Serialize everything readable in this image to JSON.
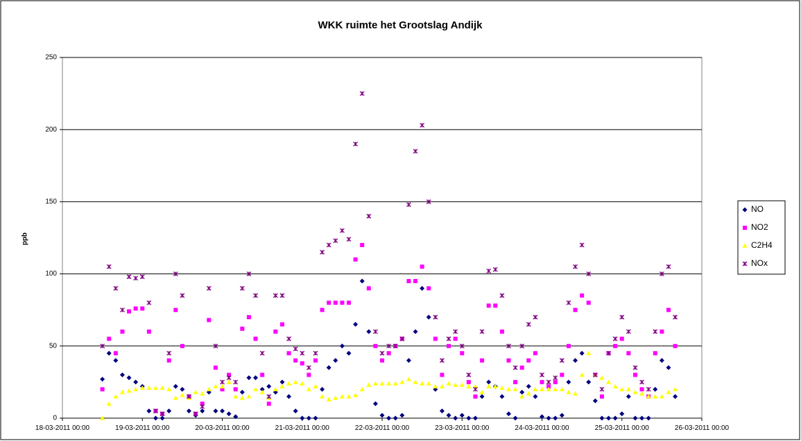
{
  "chart_data": {
    "type": "scatter",
    "title": "WKK ruimte het Grootslag Andijk",
    "y_label": "ppb",
    "x": [
      "2011-03-18T12:00",
      "2011-03-18T14:00",
      "2011-03-18T16:00",
      "2011-03-18T18:00",
      "2011-03-18T20:00",
      "2011-03-18T22:00",
      "2011-03-19T00:00",
      "2011-03-19T02:00",
      "2011-03-19T04:00",
      "2011-03-19T06:00",
      "2011-03-19T08:00",
      "2011-03-19T10:00",
      "2011-03-19T12:00",
      "2011-03-19T14:00",
      "2011-03-19T16:00",
      "2011-03-19T18:00",
      "2011-03-19T20:00",
      "2011-03-19T22:00",
      "2011-03-20T00:00",
      "2011-03-20T02:00",
      "2011-03-20T04:00",
      "2011-03-20T06:00",
      "2011-03-20T08:00",
      "2011-03-20T10:00",
      "2011-03-20T12:00",
      "2011-03-20T14:00",
      "2011-03-20T16:00",
      "2011-03-20T18:00",
      "2011-03-20T20:00",
      "2011-03-20T22:00",
      "2011-03-21T00:00",
      "2011-03-21T02:00",
      "2011-03-21T04:00",
      "2011-03-21T06:00",
      "2011-03-21T08:00",
      "2011-03-21T10:00",
      "2011-03-21T12:00",
      "2011-03-21T14:00",
      "2011-03-21T16:00",
      "2011-03-21T18:00",
      "2011-03-21T20:00",
      "2011-03-21T22:00",
      "2011-03-22T00:00",
      "2011-03-22T02:00",
      "2011-03-22T04:00",
      "2011-03-22T06:00",
      "2011-03-22T08:00",
      "2011-03-22T10:00",
      "2011-03-22T12:00",
      "2011-03-22T14:00",
      "2011-03-22T16:00",
      "2011-03-22T18:00",
      "2011-03-22T20:00",
      "2011-03-22T22:00",
      "2011-03-23T00:00",
      "2011-03-23T02:00",
      "2011-03-23T04:00",
      "2011-03-23T06:00",
      "2011-03-23T08:00",
      "2011-03-23T10:00",
      "2011-03-23T12:00",
      "2011-03-23T14:00",
      "2011-03-23T16:00",
      "2011-03-23T18:00",
      "2011-03-23T20:00",
      "2011-03-23T22:00",
      "2011-03-24T00:00",
      "2011-03-24T02:00",
      "2011-03-24T04:00",
      "2011-03-24T06:00",
      "2011-03-24T08:00",
      "2011-03-24T10:00",
      "2011-03-24T12:00",
      "2011-03-24T14:00",
      "2011-03-24T16:00",
      "2011-03-24T18:00",
      "2011-03-24T20:00",
      "2011-03-24T22:00",
      "2011-03-25T00:00",
      "2011-03-25T02:00",
      "2011-03-25T04:00",
      "2011-03-25T06:00",
      "2011-03-25T08:00",
      "2011-03-25T10:00",
      "2011-03-25T12:00",
      "2011-03-25T14:00",
      "2011-03-25T16:00"
    ],
    "series": [
      {
        "name": "NO",
        "color": "#000080",
        "marker": "diamond",
        "values": [
          27,
          45,
          40,
          30,
          28,
          25,
          22,
          5,
          0,
          0,
          5,
          22,
          20,
          5,
          2,
          5,
          18,
          5,
          5,
          3,
          1,
          18,
          28,
          28,
          20,
          22,
          18,
          25,
          15,
          5,
          0,
          0,
          0,
          20,
          35,
          40,
          50,
          45,
          65,
          95,
          60,
          10,
          2,
          0,
          0,
          2,
          40,
          60,
          90,
          70,
          20,
          5,
          2,
          0,
          2,
          0,
          0,
          15,
          25,
          22,
          15,
          3,
          0,
          18,
          22,
          15,
          1,
          0,
          0,
          2,
          25,
          40,
          45,
          25,
          12,
          0,
          0,
          0,
          3,
          15,
          0,
          0,
          0,
          20,
          40,
          35,
          15
        ]
      },
      {
        "name": "NO2",
        "color": "#ff00ff",
        "marker": "square",
        "values": [
          20,
          55,
          45,
          60,
          74,
          76,
          76,
          60,
          5,
          3,
          40,
          75,
          50,
          15,
          3,
          10,
          68,
          35,
          20,
          30,
          20,
          62,
          70,
          55,
          30,
          10,
          60,
          65,
          45,
          40,
          38,
          30,
          40,
          75,
          80,
          80,
          80,
          80,
          110,
          120,
          90,
          50,
          40,
          45,
          50,
          55,
          95,
          95,
          105,
          90,
          55,
          30,
          50,
          55,
          45,
          25,
          15,
          40,
          78,
          78,
          60,
          40,
          25,
          35,
          40,
          45,
          25,
          22,
          25,
          30,
          50,
          75,
          85,
          80,
          30,
          15,
          45,
          50,
          55,
          45,
          30,
          20,
          15,
          45,
          60,
          75,
          50
        ]
      },
      {
        "name": "C2H4",
        "color": "#ffff00",
        "marker": "triangle",
        "values": [
          0,
          10,
          15,
          18,
          19,
          20,
          21,
          21,
          21,
          21,
          20,
          14,
          16,
          14,
          18,
          17,
          20,
          22,
          22,
          25,
          15,
          14,
          15,
          20,
          18,
          14,
          20,
          22,
          24,
          25,
          24,
          20,
          22,
          15,
          13,
          14,
          15,
          15,
          16,
          20,
          23,
          24,
          24,
          24,
          24,
          25,
          27,
          25,
          24,
          24,
          22,
          22,
          24,
          23,
          23,
          22,
          22,
          18,
          22,
          22,
          21,
          20,
          20,
          15,
          17,
          20,
          20,
          20,
          20,
          20,
          18,
          17,
          30,
          45,
          30,
          28,
          25,
          22,
          20,
          20,
          18,
          17,
          15,
          15,
          15,
          18,
          20
        ]
      },
      {
        "name": "NOx",
        "color": "#800080",
        "marker": "x",
        "values": [
          50,
          105,
          90,
          75,
          98,
          97,
          98,
          80,
          5,
          3,
          45,
          100,
          85,
          15,
          3,
          8,
          90,
          50,
          25,
          28,
          25,
          90,
          100,
          85,
          45,
          15,
          85,
          85,
          55,
          48,
          45,
          35,
          45,
          115,
          120,
          123,
          130,
          124,
          190,
          225,
          140,
          60,
          45,
          50,
          50,
          55,
          148,
          185,
          203,
          150,
          70,
          40,
          55,
          60,
          50,
          30,
          20,
          60,
          102,
          103,
          85,
          50,
          35,
          50,
          65,
          70,
          30,
          25,
          28,
          40,
          80,
          105,
          120,
          100,
          30,
          20,
          45,
          55,
          70,
          60,
          35,
          25,
          20,
          60,
          100,
          105,
          70
        ]
      }
    ],
    "xlim": [
      "2011-03-18T00:00",
      "2011-03-26T00:00"
    ],
    "xticks": [
      {
        "value": "2011-03-18T00:00",
        "label": "18-03-2011 00:00"
      },
      {
        "value": "2011-03-19T00:00",
        "label": "19-03-2011 00:00"
      },
      {
        "value": "2011-03-20T00:00",
        "label": "20-03-2011 00:00"
      },
      {
        "value": "2011-03-21T00:00",
        "label": "21-03-2011 00:00"
      },
      {
        "value": "2011-03-22T00:00",
        "label": "22-03-2011 00:00"
      },
      {
        "value": "2011-03-23T00:00",
        "label": "23-03-2011 00:00"
      },
      {
        "value": "2011-03-24T00:00",
        "label": "24-03-2011 00:00"
      },
      {
        "value": "2011-03-25T00:00",
        "label": "25-03-2011 00:00"
      },
      {
        "value": "2011-03-26T00:00",
        "label": "26-03-2011 00:00"
      }
    ],
    "ylim": [
      0,
      250
    ],
    "yticks": [
      0,
      50,
      100,
      150,
      200,
      250
    ],
    "grid": true,
    "legend": "right"
  }
}
